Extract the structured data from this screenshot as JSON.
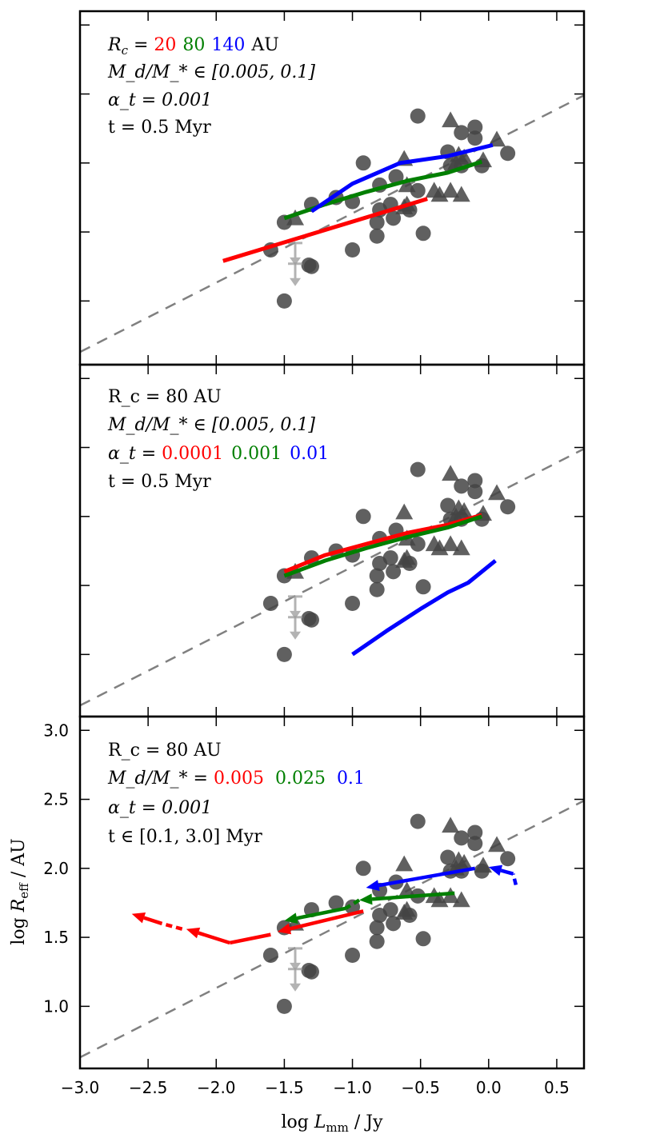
{
  "chart_data": {
    "type": "scatter",
    "xlabel": "log Lmm / Jy",
    "ylabel": "log Reff / AU",
    "xlim": [
      -3.0,
      0.7
    ],
    "ylim": [
      0.55,
      3.1
    ],
    "xticks": [
      -3.0,
      -2.5,
      -2.0,
      -1.5,
      -1.0,
      -0.5,
      0.0,
      0.5
    ],
    "xtick_labels": [
      "−3.0",
      "−2.5",
      "−2.0",
      "−1.5",
      "−1.0",
      "−0.5",
      "0.0",
      "0.5"
    ],
    "yticks": [
      1.0,
      1.5,
      2.0,
      2.5,
      3.0
    ],
    "ytick_labels": [
      "1.0",
      "1.5",
      "2.0",
      "2.5",
      "3.0"
    ],
    "colors": {
      "red": "#ff0000",
      "green": "#007f00",
      "blue": "#0000ff",
      "points": "#444444",
      "dashed": "#808080",
      "upper_limit": "#9a9a9a"
    },
    "reference_line": {
      "x": [
        -3.0,
        0.7
      ],
      "y": [
        0.63,
        2.49
      ],
      "style": "dashed"
    },
    "observations": {
      "circles": [
        [
          -1.5,
          1.57
        ],
        [
          -1.6,
          1.37
        ],
        [
          -1.32,
          1.26
        ],
        [
          -1.3,
          1.25
        ],
        [
          -1.5,
          1.0
        ],
        [
          -1.3,
          1.7
        ],
        [
          -1.12,
          1.75
        ],
        [
          -1.0,
          1.72
        ],
        [
          -1.0,
          1.37
        ],
        [
          -0.92,
          2.0
        ],
        [
          -0.8,
          1.84
        ],
        [
          -0.8,
          1.66
        ],
        [
          -0.82,
          1.57
        ],
        [
          -0.82,
          1.47
        ],
        [
          -0.68,
          1.9
        ],
        [
          -0.72,
          1.7
        ],
        [
          -0.7,
          1.6
        ],
        [
          -0.58,
          1.66
        ],
        [
          -0.52,
          1.8
        ],
        [
          -0.52,
          2.34
        ],
        [
          -0.48,
          1.49
        ],
        [
          -0.3,
          2.08
        ],
        [
          -0.28,
          1.98
        ],
        [
          -0.2,
          2.22
        ],
        [
          -0.2,
          1.98
        ],
        [
          -0.1,
          2.26
        ],
        [
          -0.1,
          2.18
        ],
        [
          -0.05,
          1.98
        ],
        [
          0.14,
          2.07
        ]
      ],
      "triangles": [
        [
          -1.42,
          1.6
        ],
        [
          -0.62,
          1.68
        ],
        [
          -0.6,
          1.7
        ],
        [
          -0.6,
          1.84
        ],
        [
          -0.62,
          2.03
        ],
        [
          -0.4,
          1.8
        ],
        [
          -0.36,
          1.77
        ],
        [
          -0.28,
          1.8
        ],
        [
          -0.24,
          2.0
        ],
        [
          -0.28,
          2.31
        ],
        [
          -0.18,
          2.04
        ],
        [
          -0.22,
          2.06
        ],
        [
          -0.2,
          1.77
        ],
        [
          0.06,
          2.17
        ],
        [
          -0.04,
          2.02
        ]
      ],
      "upper_limits": [
        [
          -1.42,
          1.42
        ],
        [
          -1.42,
          1.27
        ]
      ]
    },
    "panels": [
      {
        "name": "top",
        "annotations": [
          {
            "label": "R_c = ",
            "values": [
              [
                "20",
                "red"
              ],
              [
                "80",
                "green"
              ],
              [
                "140",
                "blue"
              ]
            ],
            "suffix": " AU"
          },
          {
            "text": "M_d/M_* ∈ [0.005, 0.1]"
          },
          {
            "text": "α_t = 0.001"
          },
          {
            "text": "t = 0.5 Myr"
          }
        ],
        "series": [
          {
            "name": "R_c = 20 AU",
            "color": "red",
            "x": [
              -1.95,
              -0.45
            ],
            "y": [
              1.29,
              1.74
            ]
          },
          {
            "name": "R_c = 80 AU",
            "color": "green",
            "x": [
              -1.5,
              -1.2,
              -0.9,
              -0.6,
              -0.3,
              -0.05
            ],
            "y": [
              1.6,
              1.7,
              1.79,
              1.87,
              1.93,
              2.01
            ]
          },
          {
            "name": "R_c = 140 AU",
            "color": "blue",
            "x": [
              -1.3,
              -1.0,
              -0.65,
              -0.3,
              0.03
            ],
            "y": [
              1.65,
              1.85,
              2.0,
              2.05,
              2.13
            ]
          }
        ]
      },
      {
        "name": "middle",
        "annotations": [
          {
            "text": "R_c = 80 AU"
          },
          {
            "text": "M_d/M_* ∈ [0.005, 0.1]"
          },
          {
            "label": "α_t = ",
            "values": [
              [
                "0.0001",
                "red"
              ],
              [
                "0.001",
                "green"
              ],
              [
                "0.01",
                "blue"
              ]
            ],
            "suffix": ""
          },
          {
            "text": "t = 0.5 Myr"
          }
        ],
        "series": [
          {
            "name": "α_t = 0.0001",
            "color": "red",
            "x": [
              -1.5,
              -1.2,
              -0.9,
              -0.6,
              -0.3,
              -0.05
            ],
            "y": [
              1.6,
              1.72,
              1.8,
              1.88,
              1.94,
              2.01
            ]
          },
          {
            "name": "α_t = 0.001",
            "color": "green",
            "x": [
              -1.5,
              -1.2,
              -0.9,
              -0.6,
              -0.3,
              -0.05
            ],
            "y": [
              1.57,
              1.68,
              1.77,
              1.85,
              1.92,
              2.0
            ]
          },
          {
            "name": "α_t = 0.01",
            "color": "blue",
            "x": [
              -1.0,
              -0.75,
              -0.5,
              -0.3,
              -0.15,
              0.05
            ],
            "y": [
              1.0,
              1.17,
              1.33,
              1.45,
              1.52,
              1.68
            ]
          }
        ]
      },
      {
        "name": "bottom",
        "annotations": [
          {
            "text": "R_c = 80 AU"
          },
          {
            "label": "M_d/M_* = ",
            "values": [
              [
                "0.005",
                "red"
              ],
              [
                "0.025",
                "green"
              ],
              [
                "0.1",
                "blue"
              ]
            ],
            "suffix": ""
          },
          {
            "text": "α_t = 0.001"
          },
          {
            "text": "t ∈ [0.1, 3.0] Myr"
          }
        ],
        "arrows": [
          {
            "color": "red",
            "x": [
              -0.92,
              -1.55
            ],
            "y": [
              1.69,
              1.54
            ]
          },
          {
            "color": "red",
            "x": [
              -1.9,
              -2.22
            ],
            "y": [
              1.46,
              1.56
            ]
          },
          {
            "color": "red",
            "x": [
              -2.4,
              -2.62
            ],
            "y": [
              1.6,
              1.67
            ]
          },
          {
            "color": "green",
            "x": [
              -0.25,
              -0.95
            ],
            "y": [
              1.82,
              1.77
            ]
          },
          {
            "color": "green",
            "x": [
              -1.05,
              -1.5
            ],
            "y": [
              1.71,
              1.62
            ]
          },
          {
            "color": "blue",
            "x": [
              0.18,
              0.0
            ],
            "y": [
              1.96,
              2.01
            ]
          },
          {
            "color": "blue",
            "x": [
              -0.1,
              -0.9
            ],
            "y": [
              2.0,
              1.86
            ]
          }
        ],
        "arrow_tails": [
          {
            "color": "red",
            "x": [
              -1.6,
              -1.9
            ],
            "y": [
              1.52,
              1.46
            ],
            "style": "solid"
          },
          {
            "color": "red",
            "x": [
              -2.25,
              -2.4
            ],
            "y": [
              1.56,
              1.6
            ],
            "style": "dashed"
          },
          {
            "color": "green",
            "x": [
              -0.95,
              -1.05
            ],
            "y": [
              1.77,
              1.71
            ],
            "style": "dashed"
          },
          {
            "color": "blue",
            "x": [
              0.2,
              0.18
            ],
            "y": [
              1.88,
              1.96
            ],
            "style": "dashed"
          }
        ]
      }
    ]
  },
  "labels": {
    "xlabel_main": "log ",
    "xlabel_sym": "L",
    "xlabel_sub": "mm",
    "xlabel_unit": " / Jy",
    "ylabel_main": "log ",
    "ylabel_sym": "R",
    "ylabel_sub": "eff",
    "ylabel_unit": " / AU",
    "top_l1_pre": "R",
    "top_l1_sub": "c",
    "top_l1_eq": " = ",
    "top_v1": "20",
    "top_v2": "80",
    "top_v3": "140",
    "top_l1_suffix": "AU",
    "top_l2": "M_d/M_* ∈ [0.005, 0.1]",
    "top_l3": "α_t = 0.001",
    "top_l4": "t = 0.5 Myr",
    "mid_l1": "R_c = 80 AU",
    "mid_l2": "M_d/M_* ∈ [0.005, 0.1]",
    "mid_l3_pre": "α_t = ",
    "mid_v1": "0.0001",
    "mid_v2": "0.001",
    "mid_v3": "0.01",
    "mid_l4": "t = 0.5 Myr",
    "bot_l1": "R_c = 80 AU",
    "bot_l2_pre": "M_d/M_* = ",
    "bot_v1": "0.005",
    "bot_v2": "0.025",
    "bot_v3": "0.1",
    "bot_l3": "α_t = 0.001",
    "bot_l4": "t ∈ [0.1, 3.0] Myr"
  }
}
